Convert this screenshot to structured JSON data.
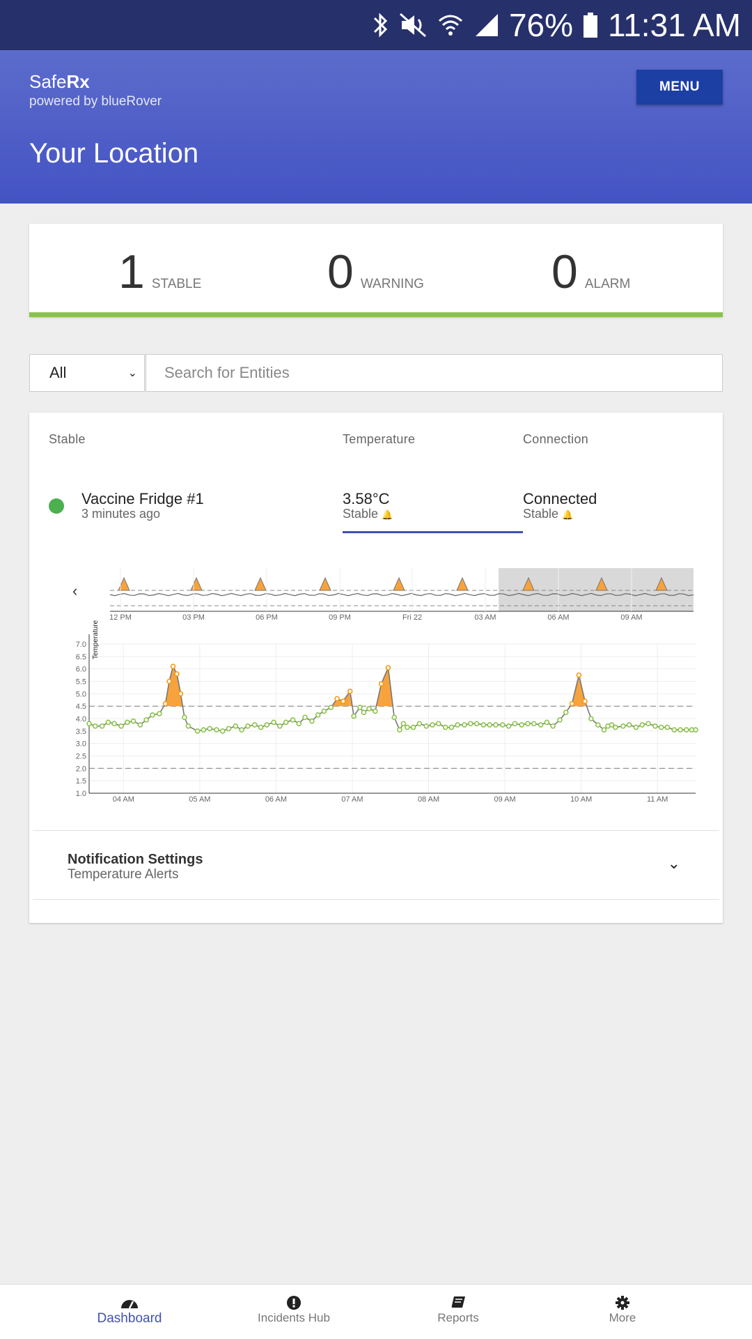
{
  "status_bar": {
    "battery": "76%",
    "time": "11:31 AM"
  },
  "header": {
    "brand_regular": "Safe",
    "brand_bold": "Rx",
    "powered_by": "powered by blueRover",
    "menu_label": "MENU",
    "title": "Your Location"
  },
  "summary": [
    {
      "count": "1",
      "label": "STABLE"
    },
    {
      "count": "0",
      "label": "WARNING"
    },
    {
      "count": "0",
      "label": "ALARM"
    }
  ],
  "filter": {
    "selected": "All",
    "search_placeholder": "Search for Entities"
  },
  "entity_table": {
    "headers": [
      "Stable",
      "Temperature",
      "Connection"
    ],
    "row": {
      "name": "Vaccine Fridge #1",
      "updated": "3 minutes ago",
      "temperature": "3.58°C",
      "temperature_status": "Stable",
      "connection": "Connected",
      "connection_status": "Stable"
    }
  },
  "navigator_ticks": [
    "12 PM",
    "03 PM",
    "06 PM",
    "09 PM",
    "Fri 22",
    "03 AM",
    "06 AM",
    "09 AM"
  ],
  "chart_data": {
    "type": "line",
    "ylabel": "Temperature",
    "ylim": [
      1.0,
      7.0
    ],
    "yticks": [
      "7.0",
      "6.5",
      "6.0",
      "5.5",
      "5.0",
      "4.5",
      "4.0",
      "3.5",
      "3.0",
      "2.5",
      "2.0",
      "1.5",
      "1.0"
    ],
    "xlabel": "",
    "xticks": [
      "04 AM",
      "05 AM",
      "06 AM",
      "07 AM",
      "08 AM",
      "09 AM",
      "10 AM",
      "11 AM"
    ],
    "thresholds": [
      4.5,
      2.0
    ],
    "xrange_hours": [
      3.55,
      11.5
    ],
    "series": [
      {
        "x": [
          3.55,
          3.63,
          3.72,
          3.8,
          3.88,
          3.97,
          4.05,
          4.13,
          4.22,
          4.3,
          4.38,
          4.47,
          4.55,
          4.6,
          4.65,
          4.7,
          4.75,
          4.8,
          4.85,
          4.97,
          5.05,
          5.13,
          5.22,
          5.3,
          5.38,
          5.47,
          5.55,
          5.63,
          5.72,
          5.8,
          5.88,
          5.97,
          6.05,
          6.13,
          6.22,
          6.3,
          6.38,
          6.47,
          6.55,
          6.63,
          6.72,
          6.8,
          6.88,
          6.97,
          7.02,
          7.1,
          7.15,
          7.22,
          7.3,
          7.38,
          7.47,
          7.55,
          7.62,
          7.67,
          7.72,
          7.8,
          7.88,
          7.97,
          8.05,
          8.13,
          8.22,
          8.3,
          8.38,
          8.47,
          8.55,
          8.63,
          8.72,
          8.8,
          8.88,
          8.97,
          9.05,
          9.13,
          9.22,
          9.3,
          9.38,
          9.47,
          9.55,
          9.63,
          9.72,
          9.8,
          9.88,
          9.97,
          10.05,
          10.13,
          10.22,
          10.3,
          10.35,
          10.4,
          10.45,
          10.55,
          10.63,
          10.72,
          10.8,
          10.88,
          10.97,
          11.05,
          11.13,
          11.22,
          11.3,
          11.38,
          11.45,
          11.5
        ],
        "y": [
          3.8,
          3.7,
          3.7,
          3.85,
          3.8,
          3.7,
          3.85,
          3.9,
          3.75,
          3.95,
          4.15,
          4.2,
          4.6,
          5.5,
          6.1,
          5.8,
          5.0,
          4.05,
          3.7,
          3.5,
          3.55,
          3.6,
          3.55,
          3.5,
          3.6,
          3.7,
          3.55,
          3.7,
          3.75,
          3.65,
          3.75,
          3.85,
          3.7,
          3.85,
          3.95,
          3.8,
          4.05,
          3.9,
          4.15,
          4.3,
          4.45,
          4.8,
          4.7,
          5.1,
          4.1,
          4.45,
          4.25,
          4.4,
          4.3,
          5.4,
          6.05,
          4.05,
          3.55,
          3.8,
          3.65,
          3.65,
          3.8,
          3.7,
          3.75,
          3.8,
          3.65,
          3.65,
          3.75,
          3.75,
          3.8,
          3.8,
          3.75,
          3.75,
          3.75,
          3.75,
          3.7,
          3.8,
          3.75,
          3.8,
          3.8,
          3.75,
          3.85,
          3.7,
          3.95,
          4.25,
          4.6,
          5.75,
          4.7,
          4.0,
          3.75,
          3.55,
          3.7,
          3.75,
          3.65,
          3.7,
          3.75,
          3.65,
          3.75,
          3.8,
          3.7,
          3.65,
          3.65,
          3.55,
          3.55,
          3.55,
          3.55,
          3.55
        ]
      }
    ]
  },
  "notification": {
    "title": "Notification Settings",
    "subtitle": "Temperature Alerts"
  },
  "bottom_nav": [
    {
      "label": "Dashboard",
      "icon": "dashboard-icon"
    },
    {
      "label": "Incidents Hub",
      "icon": "exclamation-icon"
    },
    {
      "label": "Reports",
      "icon": "book-icon"
    },
    {
      "label": "More",
      "icon": "gear-icon"
    }
  ],
  "colors": {
    "accent": "#3f51b5",
    "stable": "#8bc34a",
    "warning_fill": "#f7a23b",
    "header": "#4a58c4"
  }
}
